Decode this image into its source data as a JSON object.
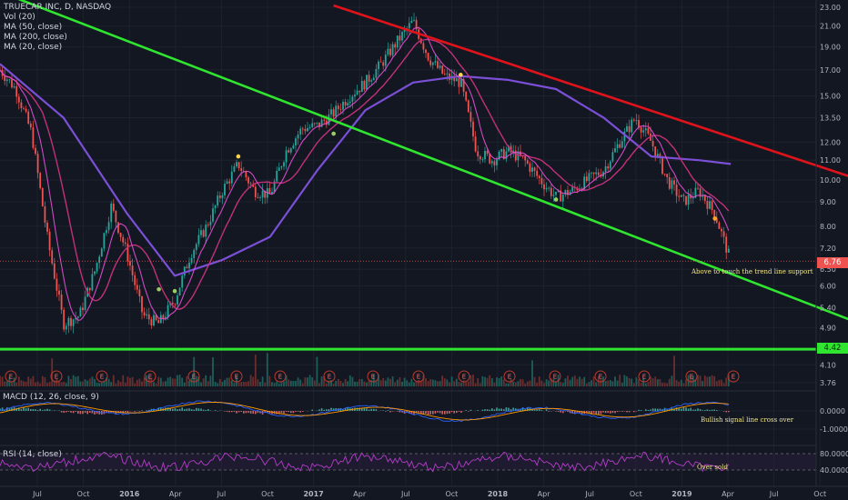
{
  "legend": {
    "title": "TRUECAR INC, D, NASDAQ",
    "vol": "Vol (20)",
    "ma1": "MA (50, close)",
    "ma2": "MA (200, close)",
    "ma3": "MA (20, close)"
  },
  "panes": {
    "macd_label": "MACD (12, 26, close, 9)",
    "rsi_label": "RSI (14, close)"
  },
  "price_tags": {
    "last": "6.76",
    "support": "4.42"
  },
  "colors": {
    "background": "#131722",
    "resistance": "#e0131b",
    "support": "#2fe52f",
    "ma200": "#7b4fd6",
    "ma50": "#c2307a",
    "ma20": "#e64fd6",
    "last_price": "#ef5350",
    "rsi": "#b43cc8"
  },
  "chart_data": {
    "type": "line",
    "y_scale": "log",
    "price_axis_ticks": [
      "23.00",
      "21.00",
      "19.00",
      "17.00",
      "15.00",
      "13.50",
      "12.00",
      "11.00",
      "10.00",
      "9.00",
      "8.00",
      "7.20",
      "6.50",
      "6.00",
      "5.40",
      "4.90",
      "4.40",
      "4.10",
      "3.76"
    ],
    "macd_axis_ticks": [
      "0.0000",
      "-1.0000"
    ],
    "rsi_axis_ticks": [
      "80.0000",
      "40.0000"
    ],
    "x_ticks": [
      "Jul",
      "Oct",
      "2016",
      "Apr",
      "Jul",
      "Oct",
      "2017",
      "Apr",
      "Jul",
      "Oct",
      "2018",
      "Apr",
      "Jul",
      "Oct",
      "2019",
      "Apr",
      "Jul",
      "Oct"
    ],
    "price_series_approx": [
      {
        "x": "2015-05",
        "y": 17.0
      },
      {
        "x": "2015-06",
        "y": 15.5
      },
      {
        "x": "2015-07",
        "y": 12.5
      },
      {
        "x": "2015-08",
        "y": 7.5
      },
      {
        "x": "2015-09",
        "y": 5.0
      },
      {
        "x": "2015-10",
        "y": 5.2
      },
      {
        "x": "2015-11",
        "y": 6.5
      },
      {
        "x": "2015-12",
        "y": 8.8
      },
      {
        "x": "2016-01",
        "y": 7.0
      },
      {
        "x": "2016-02",
        "y": 5.2
      },
      {
        "x": "2016-03",
        "y": 5.0
      },
      {
        "x": "2016-04",
        "y": 5.6
      },
      {
        "x": "2016-05",
        "y": 7.0
      },
      {
        "x": "2016-06",
        "y": 8.0
      },
      {
        "x": "2016-07",
        "y": 9.5
      },
      {
        "x": "2016-08",
        "y": 10.8
      },
      {
        "x": "2016-09",
        "y": 9.5
      },
      {
        "x": "2016-10",
        "y": 9.3
      },
      {
        "x": "2016-11",
        "y": 11.5
      },
      {
        "x": "2016-12",
        "y": 12.8
      },
      {
        "x": "2017-01",
        "y": 13.0
      },
      {
        "x": "2017-02",
        "y": 13.8
      },
      {
        "x": "2017-03",
        "y": 15.0
      },
      {
        "x": "2017-04",
        "y": 16.0
      },
      {
        "x": "2017-05",
        "y": 17.5
      },
      {
        "x": "2017-06",
        "y": 19.5
      },
      {
        "x": "2017-07",
        "y": 21.5
      },
      {
        "x": "2017-08",
        "y": 18.0
      },
      {
        "x": "2017-09",
        "y": 16.5
      },
      {
        "x": "2017-10",
        "y": 16.0
      },
      {
        "x": "2017-11",
        "y": 11.5
      },
      {
        "x": "2017-12",
        "y": 11.0
      },
      {
        "x": "2018-01",
        "y": 11.5
      },
      {
        "x": "2018-02",
        "y": 11.0
      },
      {
        "x": "2018-03",
        "y": 10.0
      },
      {
        "x": "2018-04",
        "y": 9.2
      },
      {
        "x": "2018-05",
        "y": 9.5
      },
      {
        "x": "2018-06",
        "y": 10.0
      },
      {
        "x": "2018-07",
        "y": 10.5
      },
      {
        "x": "2018-08",
        "y": 12.0
      },
      {
        "x": "2018-09",
        "y": 13.5
      },
      {
        "x": "2018-10",
        "y": 12.0
      },
      {
        "x": "2018-11",
        "y": 10.0
      },
      {
        "x": "2018-12",
        "y": 9.0
      },
      {
        "x": "2019-01",
        "y": 9.5
      },
      {
        "x": "2019-02",
        "y": 8.5
      },
      {
        "x": "2019-03",
        "y": 6.76
      }
    ],
    "ma200_approx": [
      {
        "x": "2015-05",
        "y": 17.5
      },
      {
        "x": "2015-09",
        "y": 13.5
      },
      {
        "x": "2016-01",
        "y": 8.5
      },
      {
        "x": "2016-04",
        "y": 6.3
      },
      {
        "x": "2016-07",
        "y": 6.8
      },
      {
        "x": "2016-10",
        "y": 7.6
      },
      {
        "x": "2017-01",
        "y": 10.5
      },
      {
        "x": "2017-04",
        "y": 14.0
      },
      {
        "x": "2017-07",
        "y": 16.0
      },
      {
        "x": "2017-10",
        "y": 16.5
      },
      {
        "x": "2018-01",
        "y": 16.2
      },
      {
        "x": "2018-04",
        "y": 15.5
      },
      {
        "x": "2018-07",
        "y": 13.5
      },
      {
        "x": "2018-10",
        "y": 11.2
      },
      {
        "x": "2019-01",
        "y": 11.0
      },
      {
        "x": "2019-03",
        "y": 10.8
      }
    ],
    "trendlines": [
      {
        "name": "resistance",
        "from": {
          "x": "2017-02",
          "y": 23.2
        },
        "to": {
          "x": "2019-10",
          "y": 10.0
        }
      },
      {
        "name": "support",
        "from": {
          "x": "2015-07",
          "y": 23.5
        },
        "to": {
          "x": "2019-10",
          "y": 5.0
        }
      },
      {
        "name": "horizontal support",
        "y": 4.42
      }
    ],
    "annotations": [
      {
        "text": "Above to touch the trend line support",
        "pane": "price"
      },
      {
        "text": "Bullish signal line cross over",
        "pane": "macd"
      },
      {
        "text": "Over sold",
        "pane": "rsi"
      }
    ],
    "earnings_marker": "E",
    "grid": true,
    "legend_position": "top-left"
  }
}
